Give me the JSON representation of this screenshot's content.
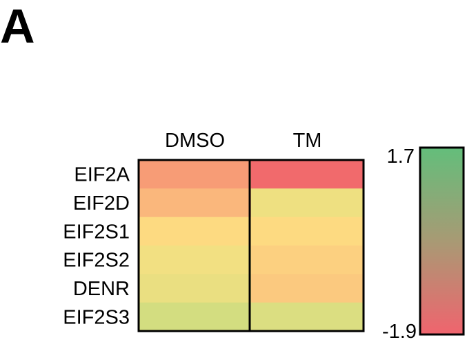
{
  "panel_label": "A",
  "chart_data": {
    "type": "heatmap",
    "columns": [
      "DMSO",
      "TM"
    ],
    "rows": [
      "EIF2A",
      "EIF2D",
      "EIF2S1",
      "EIF2S2",
      "DENR",
      "EIF2S3"
    ],
    "values": [
      [
        -1.0,
        -1.75
      ],
      [
        -0.6,
        0.2
      ],
      [
        -0.1,
        -0.1
      ],
      [
        0.15,
        -0.25
      ],
      [
        0.25,
        -0.35
      ],
      [
        0.55,
        0.45
      ]
    ],
    "color_scale": {
      "min": -1.9,
      "max": 1.7,
      "min_label": "-1.9",
      "max_label": "1.7",
      "stops": [
        {
          "value": -1.9,
          "color": "#f0606a"
        },
        {
          "value": -0.6,
          "color": "#fab77c"
        },
        {
          "value": 0.0,
          "color": "#fde182"
        },
        {
          "value": 0.6,
          "color": "#cfdd80"
        },
        {
          "value": 1.7,
          "color": "#62be79"
        }
      ],
      "colorbar_colors": [
        "#63be7b",
        "#a89a74",
        "#f0646e"
      ]
    },
    "legend": "right"
  }
}
